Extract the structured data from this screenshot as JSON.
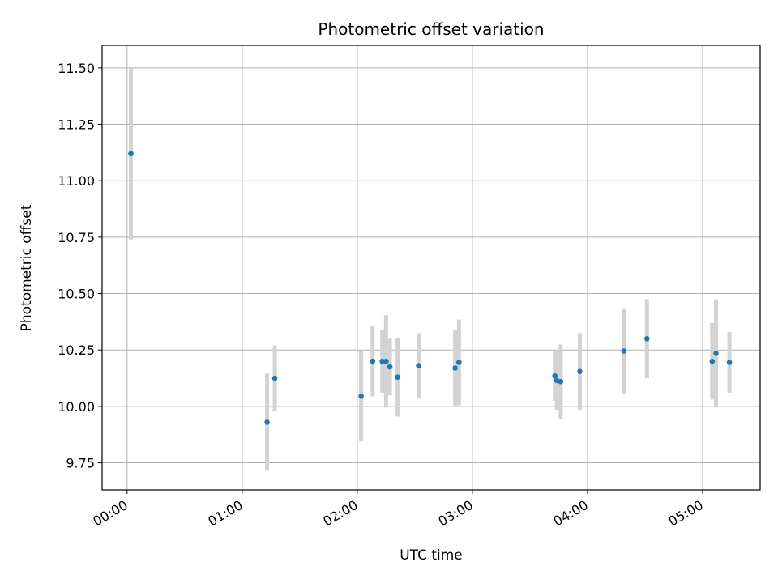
{
  "chart_data": {
    "type": "scatter",
    "title": "Photometric offset variation",
    "xlabel": "UTC time",
    "ylabel": "Photometric offset",
    "x_unit": "UTC time (HH:MM)",
    "xlim": [
      "-00:13",
      "05:30"
    ],
    "ylim": [
      9.63,
      11.6
    ],
    "x_ticks": [
      "00:00",
      "01:00",
      "02:00",
      "03:00",
      "04:00",
      "05:00"
    ],
    "y_ticks": [
      "9.75",
      "10.00",
      "10.25",
      "10.50",
      "10.75",
      "11.00",
      "11.25",
      "11.50"
    ],
    "grid": true,
    "legend": "none",
    "colors": {
      "marker": "#1f77b4",
      "errorbar": "#d3d3d3",
      "grid": "#b0b0b0"
    },
    "series": [
      {
        "points": [
          {
            "x": "00:02",
            "y": 11.12,
            "err": 0.38
          },
          {
            "x": "01:13",
            "y": 9.93,
            "err": 0.215
          },
          {
            "x": "01:17",
            "y": 10.125,
            "err": 0.145
          },
          {
            "x": "02:02",
            "y": 10.045,
            "err": 0.2
          },
          {
            "x": "02:08",
            "y": 10.2,
            "err": 0.155
          },
          {
            "x": "02:13",
            "y": 10.2,
            "err": 0.14
          },
          {
            "x": "02:15",
            "y": 10.2,
            "err": 0.205
          },
          {
            "x": "02:17",
            "y": 10.175,
            "err": 0.125
          },
          {
            "x": "02:21",
            "y": 10.13,
            "err": 0.175
          },
          {
            "x": "02:32",
            "y": 10.18,
            "err": 0.145
          },
          {
            "x": "02:51",
            "y": 10.17,
            "err": 0.17
          },
          {
            "x": "02:53",
            "y": 10.195,
            "err": 0.19
          },
          {
            "x": "03:43",
            "y": 10.135,
            "err": 0.11
          },
          {
            "x": "03:44",
            "y": 10.115,
            "err": 0.13
          },
          {
            "x": "03:46",
            "y": 10.11,
            "err": 0.165
          },
          {
            "x": "03:56",
            "y": 10.155,
            "err": 0.17
          },
          {
            "x": "04:19",
            "y": 10.245,
            "err": 0.19
          },
          {
            "x": "04:31",
            "y": 10.3,
            "err": 0.175
          },
          {
            "x": "05:05",
            "y": 10.2,
            "err": 0.17
          },
          {
            "x": "05:07",
            "y": 10.235,
            "err": 0.24
          },
          {
            "x": "05:14",
            "y": 10.195,
            "err": 0.135
          }
        ]
      }
    ]
  }
}
